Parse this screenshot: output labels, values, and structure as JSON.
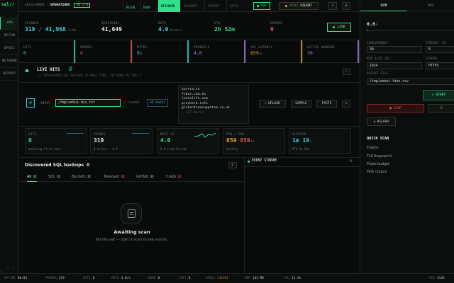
{
  "app": {
    "logo": "sql//",
    "crumb1": "SOLSCANNER",
    "crumb2": "OPERATIONS",
    "version": "v0.1.0"
  },
  "rail": [
    "OPS",
    "RECON",
    "OPSEC",
    "NETWORK",
    "REPORT"
  ],
  "stages": [
    {
      "label": "RECON",
      "state": "done"
    },
    {
      "label": "ENUM",
      "state": "done"
    },
    {
      "label": "DISCOVER",
      "state": "current"
    },
    {
      "label": "VALIDATE",
      "state": "idle"
    },
    {
      "label": "EXTRACT",
      "state": "idle"
    },
    {
      "label": "EXFIL",
      "state": "idle"
    }
  ],
  "topbar": {
    "sse": "SSE",
    "opsec_label": "OPSEC",
    "opsec_value": "SILENT"
  },
  "stats": {
    "scanned_label": "SCANNED",
    "scanned": "319",
    "scanned_total": "41,968",
    "scanned_pct": "0.8%",
    "remaining_label": "REMAINING",
    "remaining": "41,649",
    "rate_label": "RATE",
    "rate": "4.0",
    "rate_unit": "hosts/s",
    "eta_label": "ETA",
    "eta": "2h 52m",
    "errors_label": "ERRORS",
    "errors": "0",
    "live": "LIVE"
  },
  "metrics": [
    {
      "label": "HITS",
      "value": "0",
      "unit": "",
      "color": "#2fe08a"
    },
    {
      "label": "ERRORS",
      "value": "0",
      "unit": "",
      "color": "#e05656"
    },
    {
      "label": "BYTES",
      "value": "0",
      "unit": "B",
      "color": "#3ad1e0"
    },
    {
      "label": "PROBED/S",
      "value": "4.0",
      "unit": "",
      "color": "#b07ae8"
    },
    {
      "label": "AVG LATENCY",
      "value": "859",
      "unit": "ms",
      "color": "#e8a33a"
    },
    {
      "label": "ACTIVE WORKERS",
      "value": "30",
      "unit": "",
      "color": "#b07ae8"
    }
  ],
  "live_hits": {
    "title": "LIVE HITS",
    "count": "0",
    "subtitle": "// DISCOVERED SQL BACKUPS IN REAL TIME. FILTERED BY TAB */"
  },
  "input": {
    "label": "INPUT",
    "file": "/tmp/webui-mix.txt",
    "loaded": "loaded",
    "hosts": "32 hosts",
    "upload": "UPLOAD",
    "sample": "SAMPLE",
    "paste": "PASTE"
  },
  "host_preview": [
    "kurera.se",
    "ftbus.com.tw",
    "lentalife.com",
    "procherk.info",
    "glutenfreecuppatea.co.uk",
    "… (27 more)"
  ],
  "cards": [
    {
      "label": "HITS",
      "value": "0",
      "sub": "awaiting first hit…",
      "color": "#2fe08a"
    },
    {
      "label": "PROBES",
      "value": "319",
      "sub": "0 errors · 0 B",
      "color": "#e8ece8"
    },
    {
      "label": "RATE /S",
      "value": "4.0",
      "sub": "0 B transferred",
      "color": "#2fe08a"
    },
    {
      "label": "P50 / P99",
      "value": "859",
      "value2": "859",
      "unit": "ms",
      "sub": "healthy",
      "color": "#e8a33a"
    },
    {
      "label": "ELAPSED",
      "value": "1m 19",
      "unit": "s",
      "sub": "ETA 2h 52m",
      "color": "#3ad1e0"
    }
  ],
  "backups": {
    "title": "Discovered SQL backups",
    "count": "0",
    "tabs": [
      {
        "label": "All",
        "count": "0"
      },
      {
        "label": "SQL",
        "count": "0"
      },
      {
        "label": "Buckets",
        "count": "0"
      },
      {
        "label": "Takeover",
        "count": "0"
      },
      {
        "label": "GitHub",
        "count": "0"
      },
      {
        "label": "Creds",
        "count": "0"
      }
    ],
    "empty_title": "Awaiting scan",
    "empty_sub": "No hits yet — start a scan to see results."
  },
  "event_stream": {
    "title": "EVENT STREAM"
  },
  "panel": {
    "tab_run": "RUN",
    "tab_ops": "OPS",
    "progress": "0.8",
    "progress_unit": "%",
    "concurrency_label": "CONCURRENCY",
    "concurrency": "30",
    "timeout_label": "TIMEOUT (S)",
    "timeout": "6",
    "minsize_label": "MIN SIZE (B)",
    "minsize": "1024",
    "scheme_label": "SCHEME",
    "scheme": "HTTPS",
    "output_label": "OUTPUT FILE",
    "output": "/tmp/webui-fake.csv",
    "start": "START",
    "stop": "STOP",
    "reload": "RELOAD",
    "clear": "C",
    "quick_title": "QUICK SCAN",
    "quick": [
      "Engine",
      "TLS fingerprint",
      "Probe budget",
      "Path corpus"
    ]
  },
  "statusbar": [
    {
      "k": "UPTIME",
      "v": "00:03"
    },
    {
      "k": "PROBES",
      "v": "319"
    },
    {
      "k": "HITS",
      "v": "0"
    },
    {
      "k": "RATE",
      "v": "4.0/s"
    },
    {
      "k": "WORK",
      "v": "0"
    },
    {
      "k": "CRIT",
      "v": "0"
    },
    {
      "k": "OPSEC",
      "v": "silent"
    },
    {
      "k": "MEM",
      "v": "142 MB"
    },
    {
      "k": "CPU",
      "v": "12.4%"
    }
  ],
  "statusbar_right": {
    "k": "PID",
    "v": "4128"
  },
  "rail_foot": "1 · 2 · 3 · 4"
}
